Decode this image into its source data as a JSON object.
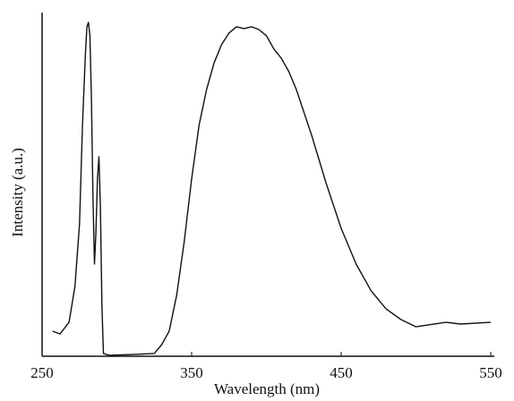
{
  "chart_data": {
    "type": "line",
    "x_label": "Wavelength (nm)",
    "y_label": "Intensity (a.u.)",
    "xlim": [
      250,
      550
    ],
    "xticks": [
      250,
      350,
      450,
      550
    ],
    "ylim": [
      0,
      100
    ],
    "color": "#111111",
    "x": [
      257,
      262,
      268,
      272,
      275,
      277,
      279,
      280,
      281,
      282,
      283,
      284,
      285,
      286,
      287,
      288,
      289,
      290,
      291,
      295,
      310,
      325,
      330,
      335,
      340,
      345,
      350,
      355,
      360,
      365,
      370,
      375,
      380,
      385,
      390,
      395,
      400,
      405,
      410,
      415,
      420,
      430,
      440,
      450,
      460,
      470,
      480,
      490,
      500,
      520,
      530,
      550
    ],
    "values": [
      7.3,
      6.5,
      9.9,
      20.4,
      38.6,
      67.4,
      88.3,
      96.1,
      97.4,
      93.5,
      75.2,
      46.5,
      26.9,
      36,
      51.7,
      58.2,
      43.9,
      15.1,
      0.8,
      0.3,
      0.5,
      0.8,
      3.4,
      7.3,
      17.8,
      33.4,
      51.7,
      67.4,
      77.8,
      85.6,
      90.9,
      94.3,
      96.1,
      95.6,
      96.1,
      95.3,
      93.5,
      89.6,
      86.9,
      83,
      77.8,
      64.8,
      50.4,
      37.3,
      26.9,
      19.1,
      13.8,
      10.7,
      8.6,
      9.9,
      9.4,
      9.9
    ]
  }
}
